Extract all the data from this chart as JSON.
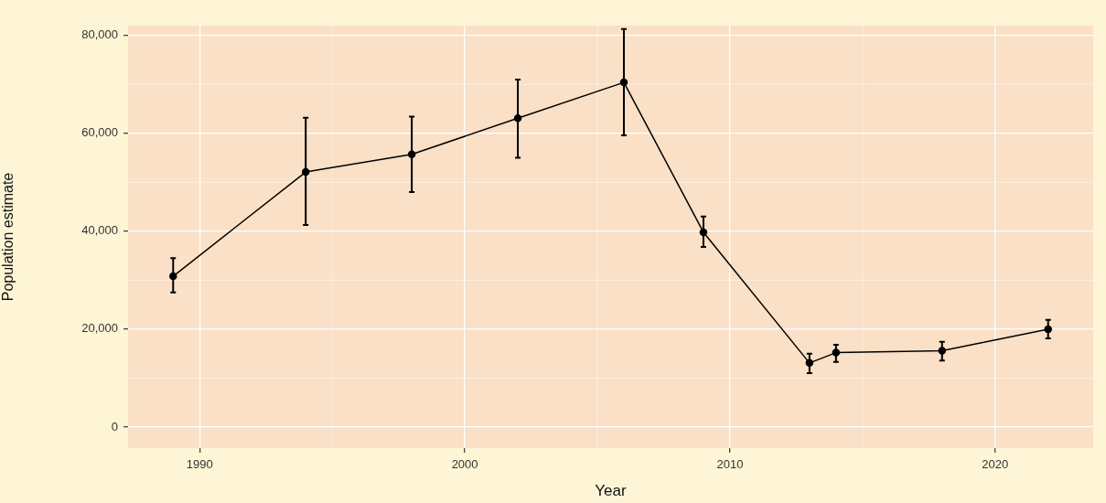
{
  "chart_data": {
    "type": "line",
    "xlabel": "Year",
    "ylabel": "Population estimate",
    "x": [
      1989,
      1994,
      1998,
      2002,
      2006,
      2009,
      2013,
      2014,
      2018,
      2022
    ],
    "series": [
      {
        "color": "#000000",
        "values": [
          30800,
          52100,
          55700,
          63100,
          70400,
          39800,
          13100,
          15200,
          15600,
          20000
        ],
        "errors": [
          [
            27500,
            34500
          ],
          [
            41300,
            63200
          ],
          [
            48000,
            63400
          ],
          [
            55000,
            71000
          ],
          [
            59600,
            81300
          ],
          [
            36800,
            43000
          ],
          [
            11000,
            15000
          ],
          [
            13300,
            16800
          ],
          [
            13600,
            17400
          ],
          [
            18100,
            21900
          ]
        ]
      }
    ],
    "xlim": [
      1987.3,
      2023.7
    ],
    "xticks": [
      1990,
      2000,
      2010,
      2020
    ],
    "ylim": [
      -4300,
      82000
    ],
    "yticks": [
      {
        "value": 0,
        "label": "0"
      },
      {
        "value": 20000,
        "label": "20,000"
      },
      {
        "value": 40000,
        "label": "40,000"
      },
      {
        "value": 60000,
        "label": "60,000"
      },
      {
        "value": 80000,
        "label": "80,000"
      }
    ],
    "grid": true,
    "marker": "circle",
    "line_style": "solid",
    "legend": false
  }
}
